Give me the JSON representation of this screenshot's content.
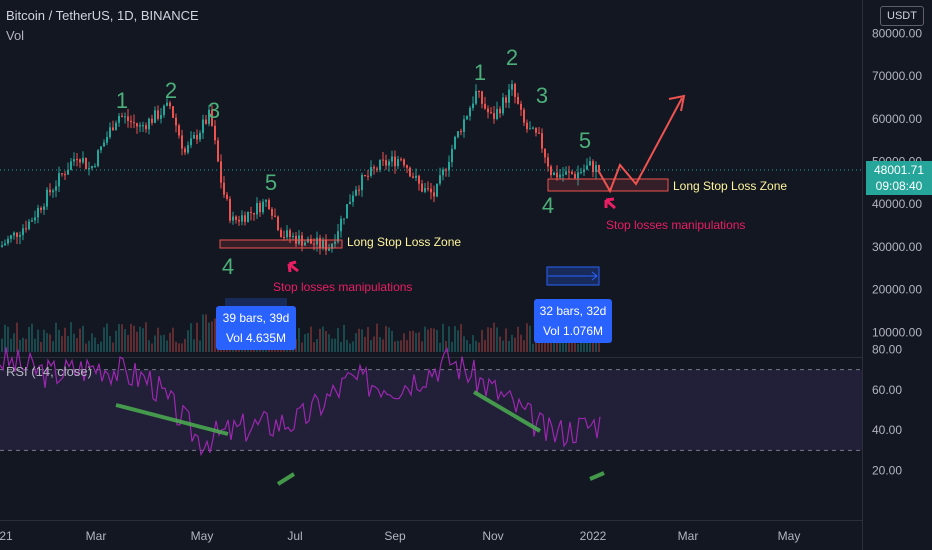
{
  "header": {
    "symbol_line": "Bitcoin / TetherUS, 1D, BINANCE",
    "volume_label": "Vol",
    "currency_button": "USDT"
  },
  "price_tag": {
    "price": "48001.71",
    "countdown": "09:08:40"
  },
  "rsi_label": "RSI (14, close)",
  "colors": {
    "background": "#131722",
    "up": "#26a69a",
    "down": "#ef5350",
    "wave_label": "#4caf7a",
    "rsi_line": "#9c27b0",
    "annotation": "#e91e63",
    "info_box": "#2962ff",
    "trendline": "#4caf50",
    "zone_text": "#fff59d"
  },
  "measure_boxes": [
    {
      "bars": "39 bars, 39d",
      "vol": "Vol 4.635M"
    },
    {
      "bars": "32 bars, 32d",
      "vol": "Vol 1.076M"
    }
  ],
  "annotations": {
    "stop_loss_zone_1": "Long Stop Loss Zone",
    "stop_loss_zone_2": "Long Stop Loss Zone",
    "manipulation_1": "Stop losses manipulations",
    "manipulation_2": "Stop losses manipulations"
  },
  "wave_labels_1": [
    "1",
    "2",
    "3",
    "4",
    "5"
  ],
  "wave_labels_2": [
    "1",
    "2",
    "3",
    "4",
    "5"
  ],
  "chart_data": {
    "type": "line",
    "title": "Bitcoin / TetherUS, 1D, BINANCE",
    "price_axis": {
      "ticks": [
        "80000.00",
        "70000.00",
        "60000.00",
        "50000.00",
        "40000.00",
        "30000.00",
        "20000.00",
        "10000.00"
      ],
      "ylim": [
        0,
        84000
      ]
    },
    "rsi_axis": {
      "ticks": [
        "80.00",
        "60.00",
        "40.00",
        "20.00"
      ],
      "ylim": [
        17,
        90
      ],
      "bands": [
        70,
        30
      ]
    },
    "time_axis": {
      "ticks": [
        "21",
        "Mar",
        "May",
        "Jul",
        "Sep",
        "Nov",
        "2022",
        "Mar",
        "May"
      ]
    },
    "series": [
      {
        "name": "Bitcoin / TetherUS",
        "x": [
          "2021-01",
          "2021-02-01",
          "2021-02-20",
          "2021-03-13",
          "2021-04-14",
          "2021-04-25",
          "2021-05-10",
          "2021-05-19",
          "2021-05-30",
          "2021-06-14",
          "2021-06-22",
          "2021-07-20",
          "2021-08-10",
          "2021-09-06",
          "2021-09-21",
          "2021-10-10",
          "2021-10-20",
          "2021-11-01",
          "2021-11-10",
          "2021-11-25",
          "2021-12-04",
          "2021-12-15",
          "2021-12-27",
          "2022-01-02"
        ],
        "values": [
          30000,
          36000,
          50000,
          61000,
          63000,
          51000,
          57000,
          36000,
          39000,
          40000,
          31000,
          30000,
          45000,
          51000,
          41000,
          55000,
          65000,
          61000,
          68000,
          57000,
          47000,
          46000,
          50000,
          48001.71
        ]
      },
      {
        "name": "RSI (14, close)",
        "x": [
          "2021-01",
          "2021-02",
          "2021-03",
          "2021-04",
          "2021-05",
          "2021-06",
          "2021-07",
          "2021-08",
          "2021-09",
          "2021-10",
          "2021-11",
          "2021-12",
          "2022-01"
        ],
        "values": [
          75,
          68,
          72,
          65,
          35,
          42,
          45,
          65,
          62,
          75,
          58,
          38,
          44
        ]
      }
    ],
    "current_price": 48001.71
  }
}
